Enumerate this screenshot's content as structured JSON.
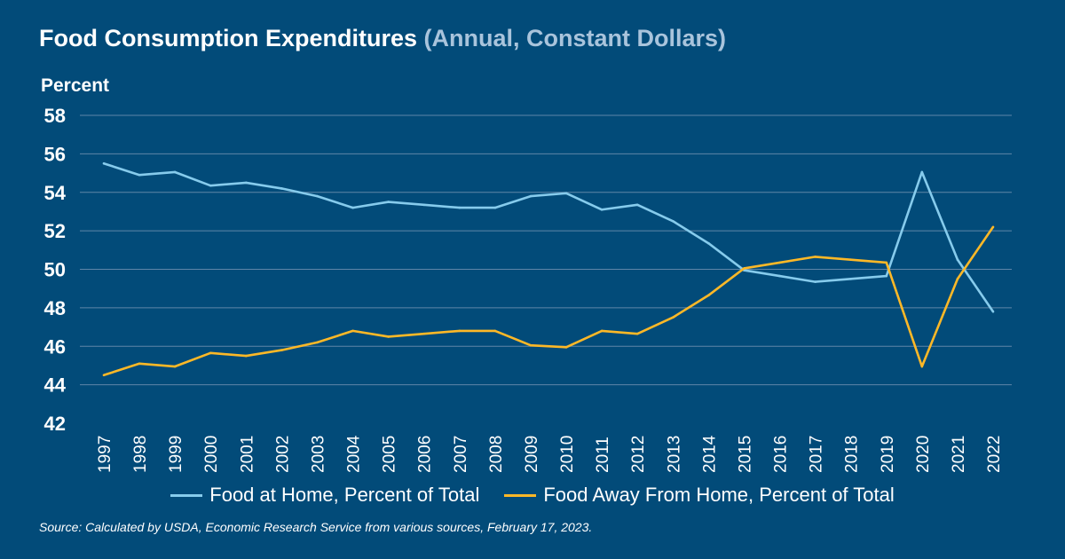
{
  "title": "Food Consumption Expenditures",
  "subtitle": "(Annual, Constant Dollars)",
  "source": "Source: Calculated by USDA, Economic Research Service from various sources, February 17, 2023.",
  "colors": {
    "background": "#024b79",
    "home": "#86cbec",
    "away": "#fdb827",
    "grid": "#5f86a8"
  },
  "chart_data": {
    "type": "line",
    "title": "Food Consumption Expenditures (Annual, Constant Dollars)",
    "ylabel": "Percent",
    "xlabel": "",
    "ylim": [
      42,
      58
    ],
    "yticks": [
      42,
      44,
      46,
      48,
      50,
      52,
      54,
      56,
      58
    ],
    "grid": true,
    "legend": "bottom",
    "x": [
      "1997",
      "1998",
      "1999",
      "2000",
      "2001",
      "2002",
      "2003",
      "2004",
      "2005",
      "2006",
      "2007",
      "2008",
      "2009",
      "2010",
      "2011",
      "2012",
      "2013",
      "2014",
      "2015",
      "2016",
      "2017",
      "2018",
      "2019",
      "2020",
      "2021",
      "2022"
    ],
    "series": [
      {
        "name": "Food at Home, Percent of Total",
        "values": [
          55.5,
          54.9,
          55.05,
          54.35,
          54.5,
          54.2,
          53.8,
          53.2,
          53.5,
          53.35,
          53.2,
          53.2,
          53.8,
          53.95,
          53.1,
          53.35,
          52.5,
          51.35,
          49.95,
          49.65,
          49.35,
          49.5,
          49.65,
          55.05,
          50.5,
          47.8
        ]
      },
      {
        "name": "Food Away From Home, Percent of Total",
        "values": [
          44.5,
          45.1,
          44.95,
          45.65,
          45.5,
          45.8,
          46.2,
          46.8,
          46.5,
          46.65,
          46.8,
          46.8,
          46.05,
          45.95,
          46.8,
          46.65,
          47.5,
          48.65,
          50.05,
          50.35,
          50.65,
          50.5,
          50.35,
          44.95,
          49.5,
          52.2
        ]
      }
    ]
  }
}
